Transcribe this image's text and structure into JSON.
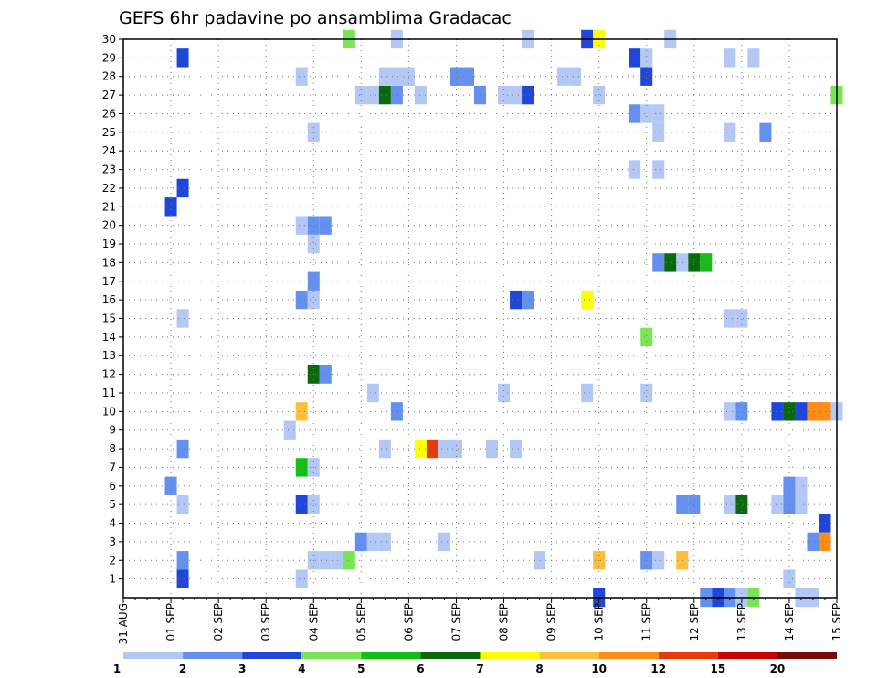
{
  "chart_data": {
    "type": "heatmap",
    "title": "GEFS 6hr padavine po ansamblima Gradacac",
    "x_tick_labels": [
      "31 AUG",
      "01 SEP",
      "02 SEP",
      "03 SEP",
      "04 SEP",
      "05 SEP",
      "06 SEP",
      "07 SEP",
      "08 SEP",
      "09 SEP",
      "10 SEP",
      "11 SEP",
      "12 SEP",
      "13 SEP",
      "14 SEP",
      "15 SEP"
    ],
    "y_tick_labels": [
      "1",
      "2",
      "3",
      "4",
      "5",
      "6",
      "7",
      "8",
      "9",
      "10",
      "11",
      "12",
      "13",
      "14",
      "15",
      "16",
      "17",
      "18",
      "19",
      "20",
      "21",
      "22",
      "23",
      "24",
      "25",
      "26",
      "27",
      "28",
      "29",
      "30"
    ],
    "x_range_days": [
      0,
      15
    ],
    "y_range": [
      0,
      30
    ],
    "time_step_hours": 6,
    "grid": "dotted",
    "color_levels": [
      {
        "label": "1",
        "color": "#b4c8f5"
      },
      {
        "label": "2",
        "color": "#6490f0"
      },
      {
        "label": "3",
        "color": "#1e46d8"
      },
      {
        "label": "4",
        "color": "#78e650"
      },
      {
        "label": "5",
        "color": "#14be14"
      },
      {
        "label": "6",
        "color": "#0a690a"
      },
      {
        "label": "7",
        "color": "#ffff00"
      },
      {
        "label": "8",
        "color": "#ffbe3c"
      },
      {
        "label": "10",
        "color": "#ff8c14"
      },
      {
        "label": "12",
        "color": "#e63c0a"
      },
      {
        "label": "15",
        "color": "#c80000"
      },
      {
        "label": "20",
        "color": "#780a0a"
      }
    ],
    "cells": [
      [
        1.25,
        29,
        2
      ],
      [
        1.25,
        22,
        2
      ],
      [
        1.0,
        21,
        2
      ],
      [
        1.25,
        15,
        0
      ],
      [
        1.25,
        8,
        1
      ],
      [
        1.0,
        6,
        1
      ],
      [
        1.25,
        5,
        0
      ],
      [
        1.25,
        2,
        1
      ],
      [
        1.25,
        1,
        2
      ],
      [
        3.75,
        28,
        0
      ],
      [
        3.75,
        20,
        0
      ],
      [
        4.0,
        20,
        1
      ],
      [
        4.25,
        20,
        1
      ],
      [
        4.0,
        19,
        0
      ],
      [
        4.0,
        17,
        1
      ],
      [
        3.75,
        16,
        1
      ],
      [
        4.0,
        16,
        0
      ],
      [
        4.0,
        12,
        5
      ],
      [
        4.25,
        12,
        1
      ],
      [
        3.75,
        10,
        7
      ],
      [
        3.5,
        9,
        0
      ],
      [
        3.75,
        7,
        4
      ],
      [
        4.0,
        7,
        0
      ],
      [
        3.75,
        5,
        2
      ],
      [
        4.0,
        5,
        0
      ],
      [
        4.0,
        2,
        0
      ],
      [
        4.25,
        2,
        0
      ],
      [
        4.5,
        2,
        0
      ],
      [
        3.75,
        1,
        0
      ],
      [
        4.0,
        25,
        0
      ],
      [
        4.75,
        30,
        3
      ],
      [
        5.0,
        27,
        0
      ],
      [
        5.25,
        27,
        0
      ],
      [
        5.5,
        27,
        5
      ],
      [
        5.75,
        27,
        1
      ],
      [
        5.5,
        28,
        0
      ],
      [
        5.75,
        28,
        0
      ],
      [
        6.0,
        28,
        0
      ],
      [
        6.25,
        27,
        0
      ],
      [
        4.75,
        2,
        3
      ],
      [
        5.0,
        3,
        1
      ],
      [
        5.25,
        3,
        0
      ],
      [
        5.5,
        3,
        0
      ],
      [
        5.25,
        11,
        0
      ],
      [
        5.75,
        10,
        1
      ],
      [
        5.5,
        8,
        0
      ],
      [
        6.25,
        8,
        6
      ],
      [
        6.5,
        8,
        9
      ],
      [
        6.75,
        8,
        0
      ],
      [
        7.0,
        8,
        0
      ],
      [
        7.0,
        28,
        1
      ],
      [
        7.25,
        28,
        1
      ],
      [
        7.5,
        27,
        1
      ],
      [
        8.0,
        27,
        0
      ],
      [
        8.25,
        27,
        0
      ],
      [
        8.5,
        27,
        2
      ],
      [
        7.75,
        8,
        0
      ],
      [
        8.25,
        8,
        0
      ],
      [
        8.0,
        11,
        0
      ],
      [
        8.25,
        16,
        2
      ],
      [
        8.5,
        16,
        1
      ],
      [
        6.75,
        3,
        0
      ],
      [
        8.5,
        30,
        0
      ],
      [
        5.75,
        30,
        0
      ],
      [
        9.25,
        28,
        0
      ],
      [
        9.75,
        30,
        2
      ],
      [
        10.0,
        30,
        6
      ],
      [
        9.5,
        28,
        0
      ],
      [
        10.0,
        27,
        0
      ],
      [
        9.75,
        16,
        6
      ],
      [
        9.75,
        11,
        0
      ],
      [
        10.0,
        2,
        7
      ],
      [
        8.75,
        2,
        0
      ],
      [
        10.0,
        0,
        2
      ],
      [
        10.75,
        29,
        2
      ],
      [
        11.0,
        29,
        0
      ],
      [
        11.0,
        28,
        2
      ],
      [
        10.75,
        26,
        1
      ],
      [
        11.0,
        26,
        0
      ],
      [
        11.25,
        26,
        0
      ],
      [
        11.25,
        25,
        0
      ],
      [
        10.75,
        23,
        0
      ],
      [
        11.25,
        23,
        0
      ],
      [
        11.0,
        14,
        3
      ],
      [
        11.0,
        11,
        0
      ],
      [
        11.0,
        2,
        1
      ],
      [
        11.25,
        2,
        0
      ],
      [
        11.25,
        18,
        1
      ],
      [
        11.5,
        18,
        5
      ],
      [
        11.75,
        18,
        0
      ],
      [
        12.0,
        18,
        5
      ],
      [
        12.25,
        18,
        4
      ],
      [
        12.0,
        5,
        1
      ],
      [
        11.75,
        5,
        1
      ],
      [
        11.75,
        2,
        7
      ],
      [
        11.5,
        30,
        0
      ],
      [
        12.75,
        29,
        0
      ],
      [
        13.25,
        29,
        0
      ],
      [
        12.75,
        25,
        0
      ],
      [
        13.5,
        25,
        1
      ],
      [
        12.75,
        15,
        0
      ],
      [
        13.0,
        15,
        0
      ],
      [
        12.75,
        10,
        0
      ],
      [
        13.0,
        10,
        1
      ],
      [
        12.75,
        5,
        0
      ],
      [
        13.0,
        5,
        5
      ],
      [
        12.25,
        0,
        1
      ],
      [
        12.5,
        0,
        2
      ],
      [
        12.75,
        0,
        1
      ],
      [
        13.0,
        0,
        0
      ],
      [
        13.25,
        0,
        3
      ],
      [
        13.75,
        10,
        2
      ],
      [
        14.0,
        10,
        5
      ],
      [
        14.25,
        10,
        2
      ],
      [
        14.5,
        10,
        8
      ],
      [
        14.75,
        10,
        8
      ],
      [
        15.0,
        10,
        0
      ],
      [
        14.75,
        4,
        2
      ],
      [
        14.5,
        3,
        1
      ],
      [
        14.75,
        3,
        8
      ],
      [
        14.0,
        6,
        1
      ],
      [
        14.25,
        6,
        0
      ],
      [
        14.0,
        5,
        1
      ],
      [
        13.75,
        5,
        0
      ],
      [
        14.25,
        5,
        0
      ],
      [
        14.0,
        1,
        0
      ],
      [
        14.25,
        0,
        0
      ],
      [
        14.5,
        0,
        0
      ],
      [
        15.0,
        27,
        3
      ]
    ]
  }
}
